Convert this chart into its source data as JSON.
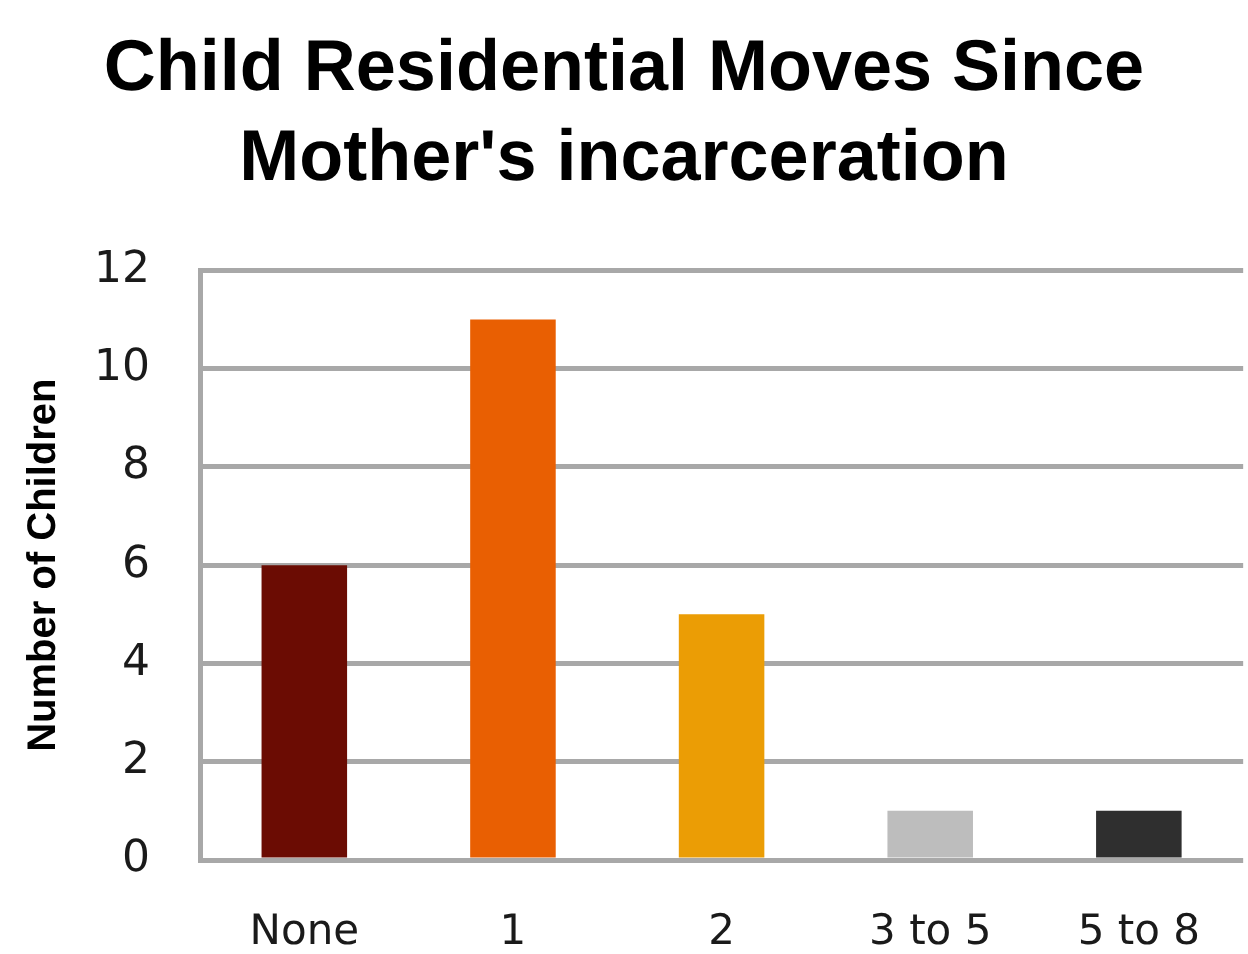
{
  "chart_data": {
    "type": "bar",
    "title": "Child Residential Moves Since Mother's incarceration",
    "ylabel": "Number of Children",
    "categories": [
      "None",
      "1",
      "2",
      "3 to 5",
      "5 to 8"
    ],
    "values": [
      6,
      11,
      5,
      1,
      1
    ],
    "colors": [
      "#6b0c03",
      "#e95f02",
      "#eb9d05",
      "#bdbdbd",
      "#2f2f2f"
    ],
    "ylim": [
      0,
      12
    ],
    "yticks": [
      0,
      2,
      4,
      6,
      8,
      10,
      12
    ],
    "grid": "y",
    "legend": false
  }
}
